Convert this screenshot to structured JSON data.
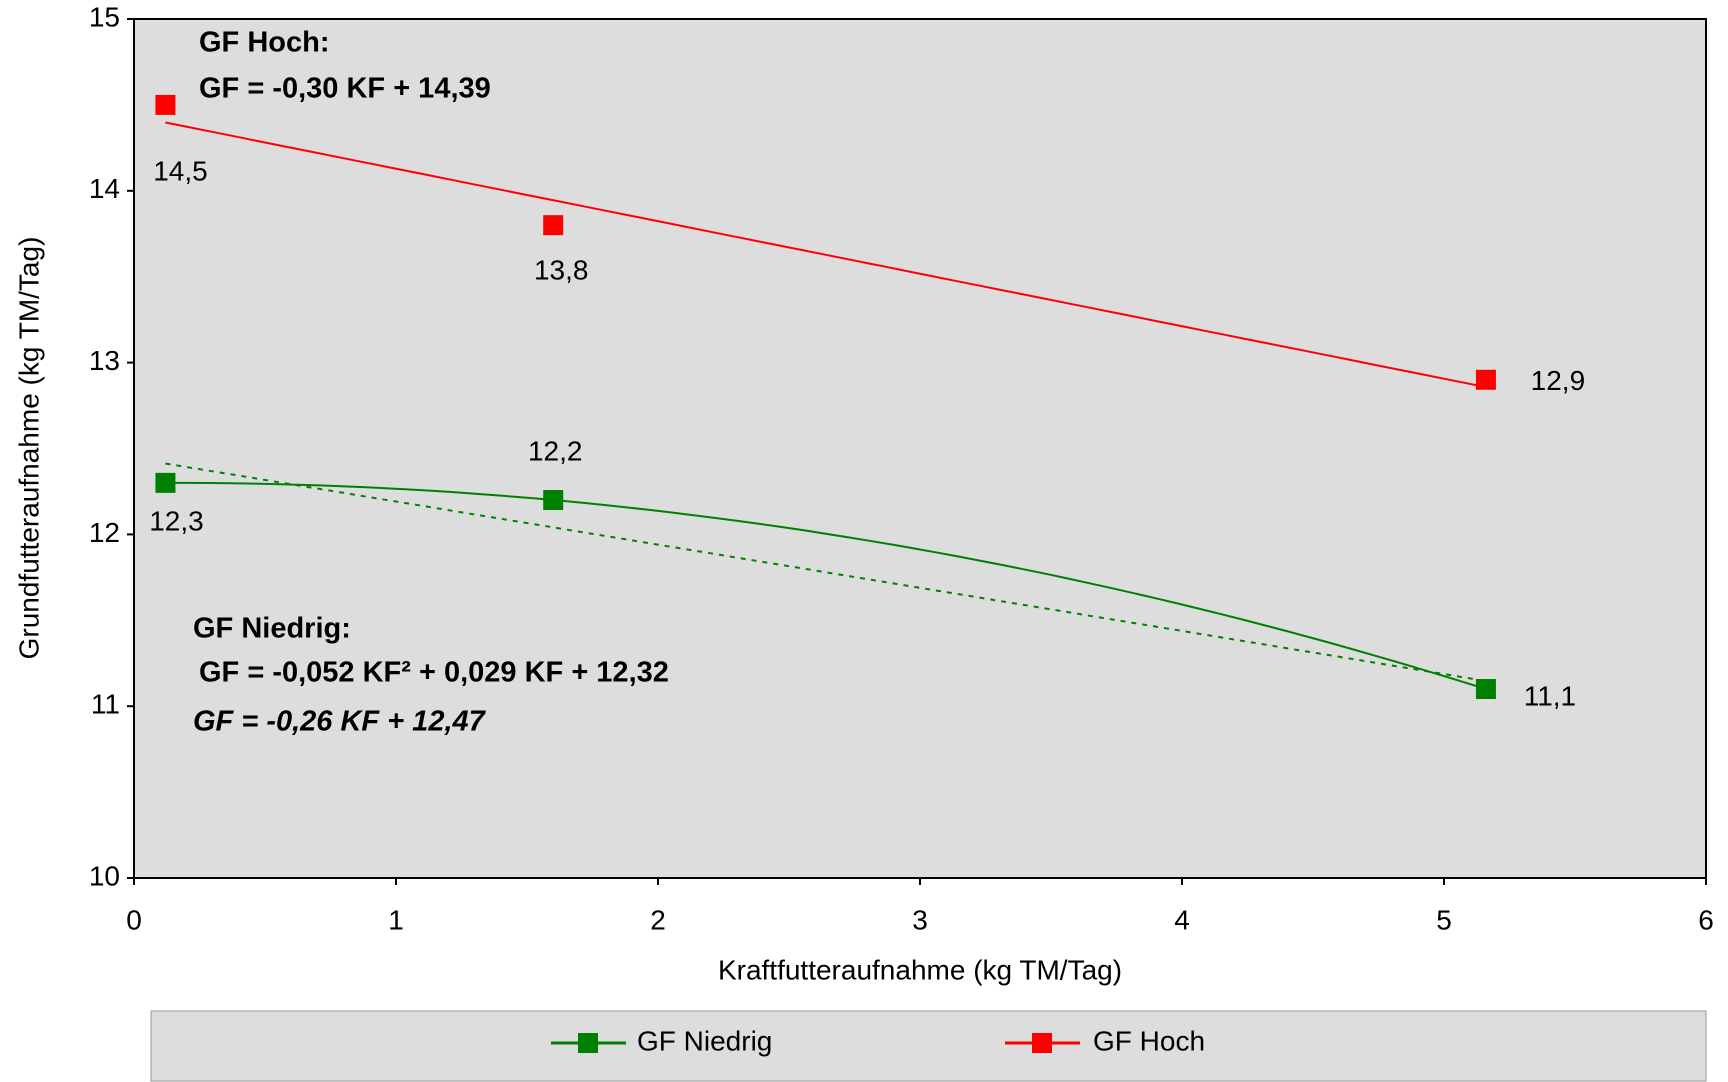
{
  "chart_data": {
    "type": "scatter",
    "x_label": "Kraftfutteraufnahme (kg TM/Tag)",
    "y_label": "Grundfutteraufnahme (kg TM/Tag)",
    "xlim": [
      0,
      6
    ],
    "xticks": [
      0,
      1,
      2,
      3,
      4,
      5,
      6
    ],
    "ylim": [
      10,
      15
    ],
    "yticks": [
      10,
      11,
      12,
      13,
      14,
      15
    ],
    "grid": false,
    "legend": "bottom",
    "series": [
      {
        "name": "GF Niedrig",
        "color": "#008000",
        "x": [
          0.12,
          1.6,
          5.16
        ],
        "values": [
          12.3,
          12.2,
          11.1
        ],
        "value_labels": [
          "12,3",
          "12,2",
          "11,1"
        ],
        "trendlines": [
          "quadratic",
          "linear"
        ]
      },
      {
        "name": "GF Hoch",
        "color": "#ff0000",
        "x": [
          0.12,
          1.6,
          5.16
        ],
        "values": [
          14.5,
          13.8,
          12.9
        ],
        "value_labels": [
          "14,5",
          "13,8",
          "12,9"
        ],
        "trendlines": [
          "linear"
        ]
      }
    ],
    "annotations": [
      {
        "text": "GF Hoch:",
        "color": "#ff0000"
      },
      {
        "text": "GF = -0,30 KF + 14,39",
        "color": "#ff0000"
      },
      {
        "text": "GF Niedrig:",
        "color": "#008000"
      },
      {
        "text": "GF = -0,052 KF² + 0,029 KF + 12,32",
        "color": "#008000"
      },
      {
        "text": "GF = -0,26 KF + 12,47",
        "color": "#008000"
      }
    ]
  }
}
